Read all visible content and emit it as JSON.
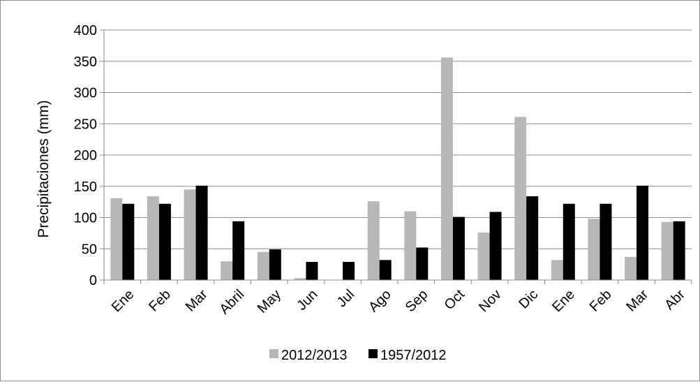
{
  "chart_data": {
    "type": "bar",
    "ylabel": "Precipitaciones (mm)",
    "xlabel": "",
    "ylim": [
      0,
      400
    ],
    "ytick_step": 50,
    "grid": true,
    "legend_position": "bottom",
    "categories": [
      "Ene",
      "Feb",
      "Mar",
      "Abril",
      "May",
      "Jun",
      "Jul",
      "Ago",
      "Sep",
      "Oct",
      "Nov",
      "Dic",
      "Ene",
      "Feb",
      "Mar",
      "Abr"
    ],
    "series": [
      {
        "name": "2012/2013",
        "color": "#b7b7b7",
        "values": [
          131,
          134,
          145,
          30,
          45,
          3,
          0,
          126,
          110,
          356,
          76,
          261,
          32,
          98,
          37,
          93
        ]
      },
      {
        "name": "1957/2012",
        "color": "#000000",
        "values": [
          122,
          122,
          151,
          94,
          49,
          29,
          29,
          32,
          52,
          101,
          109,
          134,
          122,
          122,
          151,
          94
        ]
      }
    ]
  }
}
